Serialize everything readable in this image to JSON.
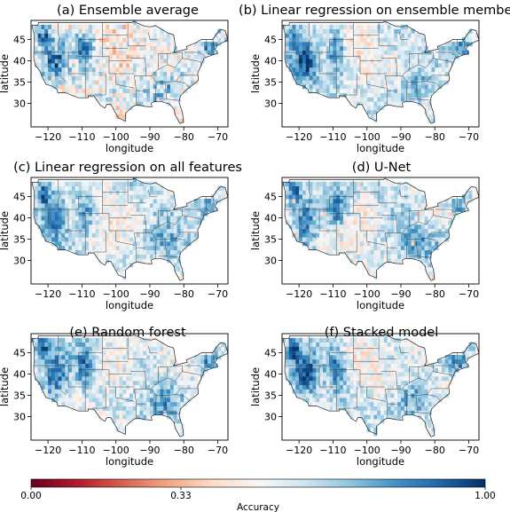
{
  "chart_data": {
    "type": "heatmap",
    "panels": [
      {
        "title": "(a) Ensemble average"
      },
      {
        "title": "(b) Linear regression on ensemble members"
      },
      {
        "title": "(c) Linear regression on all features"
      },
      {
        "title": "(d) U-Net"
      },
      {
        "title": "(e) Random forest"
      },
      {
        "title": "(f) Stacked model"
      }
    ],
    "xlabel": "longitude",
    "ylabel": "latitude",
    "x_ticks": [
      -120,
      -110,
      -100,
      -90,
      -80,
      -70
    ],
    "y_ticks": [
      30,
      35,
      40,
      45
    ],
    "xlim": [
      -125,
      -67
    ],
    "ylim": [
      24.5,
      49.5
    ],
    "colorbar": {
      "label": "Accuracy",
      "ticks": [
        "0.00",
        "0.33",
        "1.00"
      ],
      "tick_values": [
        0.0,
        0.33,
        1.0
      ],
      "range": [
        0,
        1
      ],
      "colors": [
        "#67001f",
        "#b2182b",
        "#d6604d",
        "#f4a582",
        "#fddbc7",
        "#f7f7f7",
        "#d1e5f0",
        "#92c5de",
        "#4393c3",
        "#2166ac",
        "#053061"
      ]
    }
  }
}
